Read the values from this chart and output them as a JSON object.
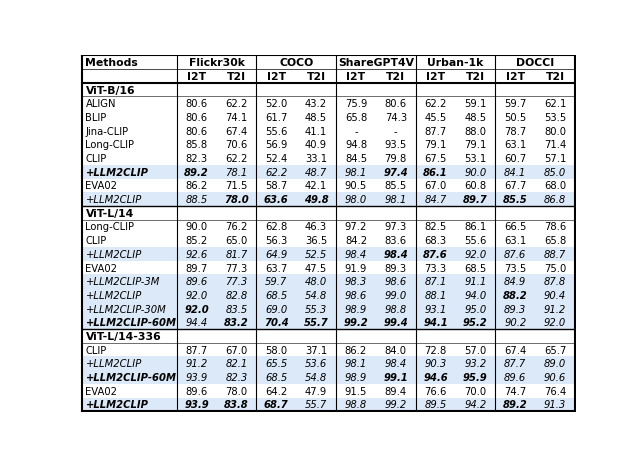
{
  "sections": [
    {
      "name": "ViT-B/16",
      "rows": [
        [
          "ALIGN",
          "80.6",
          "62.2",
          "52.0",
          "43.2",
          "75.9",
          "80.6",
          "62.2",
          "59.1",
          "59.7",
          "62.1"
        ],
        [
          "BLIP",
          "80.6",
          "74.1",
          "61.7",
          "48.5",
          "65.8",
          "74.3",
          "45.5",
          "48.5",
          "50.5",
          "53.5"
        ],
        [
          "Jina-CLIP",
          "80.6",
          "67.4",
          "55.6",
          "41.1",
          "-",
          "-",
          "87.7",
          "88.0",
          "78.7",
          "80.0"
        ],
        [
          "Long-CLIP",
          "85.8",
          "70.6",
          "56.9",
          "40.9",
          "94.8",
          "93.5",
          "79.1",
          "79.1",
          "63.1",
          "71.4"
        ],
        [
          "CLIP",
          "82.3",
          "62.2",
          "52.4",
          "33.1",
          "84.5",
          "79.8",
          "67.5",
          "53.1",
          "60.7",
          "57.1"
        ],
        [
          "+LLM2CLIP",
          "89.2",
          "78.1",
          "62.2",
          "48.7",
          "98.1",
          "97.4",
          "86.1",
          "90.0",
          "84.1",
          "85.0"
        ],
        [
          "EVA02",
          "86.2",
          "71.5",
          "58.7",
          "42.1",
          "90.5",
          "85.5",
          "67.0",
          "60.8",
          "67.7",
          "68.0"
        ],
        [
          "+LLM2CLIP",
          "88.5",
          "78.0",
          "63.6",
          "49.8",
          "98.0",
          "98.1",
          "84.7",
          "89.7",
          "85.5",
          "86.8"
        ]
      ],
      "bold_cells": {
        "5": [
          0,
          1,
          6,
          7
        ],
        "7": [
          2,
          3,
          4,
          8,
          9
        ]
      },
      "italic_rows": [
        5,
        7
      ],
      "highlight_rows": [
        5,
        7
      ]
    },
    {
      "name": "ViT-L/14",
      "rows": [
        [
          "Long-CLIP",
          "90.0",
          "76.2",
          "62.8",
          "46.3",
          "97.2",
          "97.3",
          "82.5",
          "86.1",
          "66.5",
          "78.6"
        ],
        [
          "CLIP",
          "85.2",
          "65.0",
          "56.3",
          "36.5",
          "84.2",
          "83.6",
          "68.3",
          "55.6",
          "63.1",
          "65.8"
        ],
        [
          "+LLM2CLIP",
          "92.6",
          "81.7",
          "64.9",
          "52.5",
          "98.4",
          "98.4",
          "87.6",
          "92.0",
          "87.6",
          "88.7"
        ],
        [
          "EVA02",
          "89.7",
          "77.3",
          "63.7",
          "47.5",
          "91.9",
          "89.3",
          "73.3",
          "68.5",
          "73.5",
          "75.0"
        ],
        [
          "+LLM2CLIP-3M",
          "89.6",
          "77.3",
          "59.7",
          "48.0",
          "98.3",
          "98.6",
          "87.1",
          "91.1",
          "84.9",
          "87.8"
        ],
        [
          "+LLM2CLIP",
          "92.0",
          "82.8",
          "68.5",
          "54.8",
          "98.6",
          "99.0",
          "88.1",
          "94.0",
          "88.2",
          "90.4"
        ],
        [
          "+LLM2CLIP-30M",
          "92.0",
          "83.5",
          "69.0",
          "55.3",
          "98.9",
          "98.8",
          "93.1",
          "95.0",
          "89.3",
          "91.2"
        ],
        [
          "+LLM2CLIP-60M",
          "94.4",
          "83.2",
          "70.4",
          "55.7",
          "99.2",
          "99.4",
          "94.1",
          "95.2",
          "90.2",
          "92.0"
        ]
      ],
      "bold_cells": {
        "2": [
          6,
          7
        ],
        "5": [
          9
        ],
        "6": [
          1
        ],
        "7": [
          0,
          2,
          3,
          4,
          5,
          6,
          7,
          8
        ]
      },
      "italic_rows": [
        2,
        4,
        5,
        6,
        7
      ],
      "highlight_rows": [
        2,
        4,
        5,
        6,
        7
      ]
    },
    {
      "name": "ViT-L/14-336",
      "rows": [
        [
          "CLIP",
          "87.7",
          "67.0",
          "58.0",
          "37.1",
          "86.2",
          "84.0",
          "72.8",
          "57.0",
          "67.4",
          "65.7"
        ],
        [
          "+LLM2CLIP",
          "91.2",
          "82.1",
          "65.5",
          "53.6",
          "98.1",
          "98.4",
          "90.3",
          "93.2",
          "87.7",
          "89.0"
        ],
        [
          "+LLM2CLIP-60M",
          "93.9",
          "82.3",
          "68.5",
          "54.8",
          "98.9",
          "99.1",
          "94.6",
          "95.9",
          "89.6",
          "90.6"
        ],
        [
          "EVA02",
          "89.6",
          "78.0",
          "64.2",
          "47.9",
          "91.5",
          "89.4",
          "76.6",
          "70.0",
          "74.7",
          "76.4"
        ],
        [
          "+LLM2CLIP",
          "93.9",
          "83.8",
          "68.7",
          "55.7",
          "98.8",
          "99.2",
          "89.5",
          "94.2",
          "89.2",
          "91.3"
        ]
      ],
      "bold_cells": {
        "2": [
          0,
          6,
          7,
          8
        ],
        "4": [
          0,
          1,
          2,
          3,
          9
        ]
      },
      "italic_rows": [
        1,
        2,
        4
      ],
      "highlight_rows": [
        1,
        2,
        4
      ]
    }
  ],
  "group_names": [
    "Flickr30k",
    "COCO",
    "ShareGPT4V",
    "Urban-1k",
    "DOCCI"
  ],
  "highlight_color": "#dce9f8",
  "figsize": [
    6.4,
    4.64
  ],
  "dpi": 100,
  "fs_header": 7.8,
  "fs_data": 7.2,
  "fs_section": 7.8
}
